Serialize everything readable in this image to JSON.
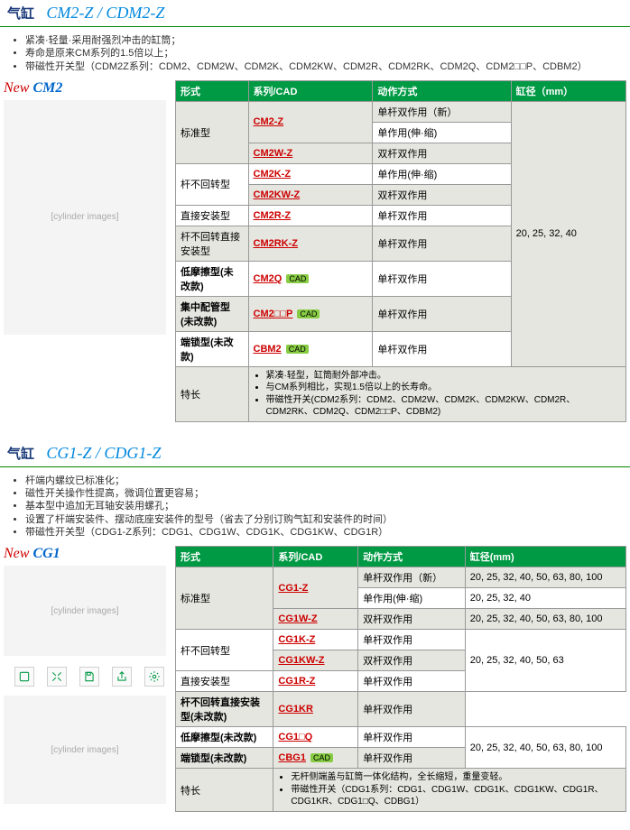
{
  "section1": {
    "title_kanji": "气缸",
    "title_model": "CM2-Z / CDM2-Z",
    "bullets": [
      "紧凑·轻量·采用耐强烈冲击的缸筒；",
      "寿命是原来CM系列的1.5倍以上；",
      "带磁性开关型（CDM2Z系列：CDM2、CDM2W、CDM2K、CDM2KW、CDM2R、CDM2RK、CDM2Q、CDM2□□P、CDBM2）"
    ],
    "new_label": {
      "new": "New",
      "model": "CM2"
    },
    "headers": [
      "形式",
      "系列/CAD",
      "动作方式",
      "缸径（mm）"
    ],
    "bore_all": "20, 25, 32, 40",
    "rows": [
      {
        "form": "标准型",
        "series": "CM2-Z",
        "action": "单杆双作用（新）",
        "form_rowspan": 3,
        "grey": true
      },
      {
        "series": "",
        "action": "单作用(伸·缩)",
        "same_series": true,
        "grey": false
      },
      {
        "series": "CM2W-Z",
        "action": "双杆双作用",
        "grey": true
      },
      {
        "form": "杆不回转型",
        "series": "CM2K-Z",
        "action": "单作用(伸·缩)",
        "form_rowspan": 2,
        "grey": false
      },
      {
        "series": "CM2KW-Z",
        "action": "双杆双作用",
        "grey": true
      },
      {
        "form": "直接安装型",
        "series": "CM2R-Z",
        "action": "单杆双作用",
        "grey": false
      },
      {
        "form": "杆不回转直接安装型",
        "series": "CM2RK-Z",
        "action": "单杆双作用",
        "grey": true
      },
      {
        "form": "低摩擦型(未改款)",
        "series": "CM2Q",
        "cad": true,
        "action": "单杆双作用",
        "grey": false,
        "form_bold": true
      },
      {
        "form": "集中配管型(未改款)",
        "series": "CM2□□P",
        "cad": true,
        "action": "单杆双作用",
        "grey": true,
        "form_bold": true
      },
      {
        "form": "端锁型(未改款)",
        "series": "CBM2",
        "cad": true,
        "action": "单杆双作用",
        "grey": false,
        "form_bold": true
      }
    ],
    "feature_label": "特长",
    "features": [
      "紧凑·轻型，缸筒耐外部冲击。",
      "与CM系列相比，实现1.5倍以上的长寿命。",
      "带磁性开关(CDM2系列：CDM2、CDM2W、CDM2K、CDM2KW、CDM2R、CDM2RK、CDM2Q、CDM2□□P、CDBM2)"
    ]
  },
  "section2": {
    "title_kanji": "气缸",
    "title_model": "CG1-Z / CDG1-Z",
    "bullets": [
      "杆端内螺纹已标准化；",
      "磁性开关操作性提高，微调位置更容易；",
      "基本型中追加无耳轴安装用螺孔；",
      "设置了杆端安装件、摆动底座安装件的型号（省去了分别订购气缸和安装件的时间）",
      "带磁性开关型（CDG1-Z系列：CDG1、CDG1W、CDG1K、CDG1KW、CDG1R）"
    ],
    "new_label": {
      "new": "New",
      "model": "CG1"
    },
    "headers": [
      "形式",
      "系列/CAD",
      "动作方式",
      "缸径(mm)"
    ],
    "rows": [
      {
        "form": "标准型",
        "series": "CG1-Z",
        "action": "单杆双作用（新）",
        "bore": "20, 25, 32, 40, 50, 63, 80, 100",
        "form_rowspan": 3,
        "series_rowspan": 2,
        "grey": true
      },
      {
        "action": "单作用(伸·缩)",
        "bore": "20, 25, 32, 40",
        "grey": false
      },
      {
        "series": "CG1W-Z",
        "action": "双杆双作用",
        "bore": "20, 25, 32, 40, 50, 63, 80, 100",
        "grey": true
      },
      {
        "form": "杆不回转型",
        "series": "CG1K-Z",
        "action": "单杆双作用",
        "bore": "20, 25, 32, 40, 50, 63",
        "form_rowspan": 2,
        "bore_rowspan": 3,
        "grey": false
      },
      {
        "series": "CG1KW-Z",
        "action": "双杆双作用",
        "grey": true
      },
      {
        "form": "直接安装型",
        "series": "CG1R-Z",
        "action": "单杆双作用",
        "grey": false
      },
      {
        "form": "杆不回转直接安装型(未改款)",
        "series": "CG1KR",
        "action": "单杆双作用",
        "grey": true,
        "form_bold": true
      },
      {
        "form": "低摩擦型(未改款)",
        "series": "CG1□Q",
        "action": "单杆双作用",
        "bore": "20, 25, 32, 40, 50, 63, 80, 100",
        "bore_rowspan": 2,
        "grey": false,
        "form_bold": true
      },
      {
        "form": "端锁型(未改款)",
        "series": "CBG1",
        "cad": true,
        "action": "单杆双作用",
        "grey": true,
        "form_bold": true
      }
    ],
    "feature_label": "特长",
    "features": [
      "无杆侧端盖与缸筒一体化结构，全长缩短，重量变轻。",
      "带磁性开关（CDG1系列：CDG1、CDG1W、CDG1K、CDG1KW、CDG1R、CDG1KR、CDG1□Q、CDBG1）"
    ]
  },
  "img_placeholder": "[cylinder images]"
}
